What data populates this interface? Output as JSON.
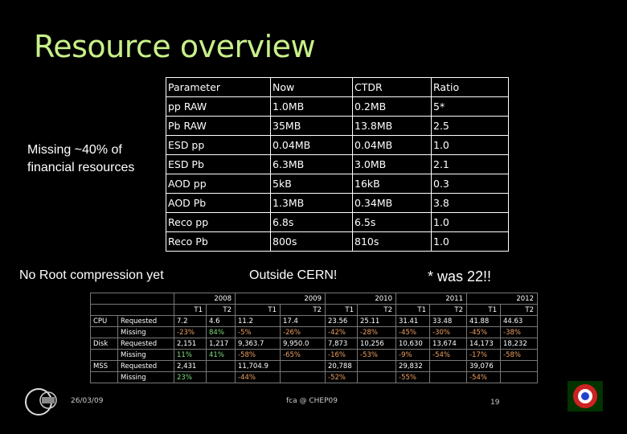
{
  "slide_title": "Resource overview",
  "side_note": "Missing ~40% of financial resources",
  "callouts": {
    "no_root": "No Root compression yet",
    "outside_cern": "Outside CERN!",
    "was_22": "* was 22!!"
  },
  "param_table": {
    "header": [
      "Parameter",
      "Now",
      "CTDR",
      "Ratio"
    ],
    "rows": [
      [
        "pp RAW",
        "1.0MB",
        "0.2MB",
        "5*"
      ],
      [
        "Pb RAW",
        "35MB",
        "13.8MB",
        "2.5"
      ],
      [
        "ESD pp",
        "0.04MB",
        "0.04MB",
        "1.0"
      ],
      [
        "ESD Pb",
        "6.3MB",
        "3.0MB",
        "2.1"
      ],
      [
        "AOD pp",
        "5kB",
        "16kB",
        "0.3"
      ],
      [
        "AOD Pb",
        "1.3MB",
        "0.34MB",
        "3.8"
      ],
      [
        "Reco pp",
        "6.8s",
        "6.5s",
        "1.0"
      ],
      [
        "Reco Pb",
        "800s",
        "810s",
        "1.0"
      ]
    ]
  },
  "resource_table": {
    "years": [
      "2008",
      "2009",
      "2010",
      "2011",
      "2012"
    ],
    "tiers": [
      "T1",
      "T2",
      "T1",
      "T2",
      "T1",
      "T2",
      "T1",
      "T2",
      "T1",
      "T2"
    ],
    "rows": [
      {
        "group": "CPU",
        "label": "Requested",
        "cells": [
          "7.2",
          "4.6",
          "11.2",
          "17.4",
          "23.56",
          "25.11",
          "31.41",
          "33.48",
          "41.88",
          "44.63"
        ]
      },
      {
        "group": "",
        "label": "Missing",
        "cells": [
          "-23%",
          "84%",
          "-5%",
          "-26%",
          "-42%",
          "-28%",
          "-45%",
          "-30%",
          "-45%",
          "-38%"
        ]
      },
      {
        "group": "Disk",
        "label": "Requested",
        "cells": [
          "2,151",
          "1,217",
          "9,363.7",
          "9,950.0",
          "7,873",
          "10,256",
          "10,630",
          "13,674",
          "14,173",
          "18,232"
        ]
      },
      {
        "group": "",
        "label": "Missing",
        "cells": [
          "11%",
          "41%",
          "-58%",
          "-65%",
          "-16%",
          "-53%",
          "-9%",
          "-54%",
          "-17%",
          "-58%"
        ]
      },
      {
        "group": "MSS",
        "label": "Requested",
        "cells": [
          "2,431",
          "",
          "11,704.9",
          "",
          "20,788",
          "",
          "29,832",
          "",
          "39,076",
          ""
        ]
      },
      {
        "group": "",
        "label": "Missing",
        "cells": [
          "23%",
          "",
          "-44%",
          "",
          "-52%",
          "",
          "-55%",
          "",
          "-54%",
          ""
        ]
      }
    ]
  },
  "footer": {
    "date": "26/03/09",
    "author": "fca @ CHEP09",
    "page": "19"
  }
}
